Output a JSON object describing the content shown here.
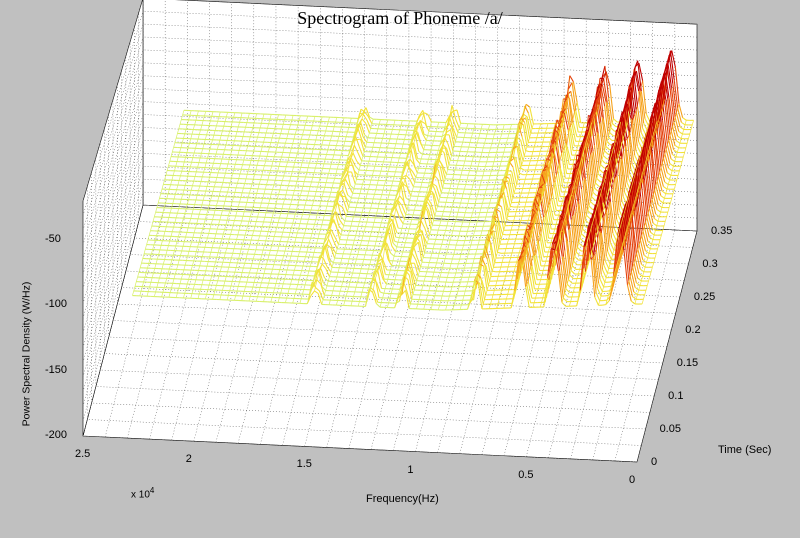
{
  "chart_data": {
    "type": "surface",
    "title": "Spectrogram of Phoneme /a/",
    "xlabel": "Frequency(Hz)",
    "xlabel_multiplier": "x 10",
    "xlabel_multiplier_exp": "4",
    "ylabel": "Time (Sec)",
    "zlabel": "Power Spectral Density (W/Hz)",
    "x_ticks": [
      "0",
      "0.5",
      "1",
      "1.5",
      "2",
      "2.5"
    ],
    "y_ticks": [
      "0",
      "0.05",
      "0.1",
      "0.15",
      "0.2",
      "0.25",
      "0.3",
      "0.35"
    ],
    "z_ticks": [
      "-50",
      "-100",
      "-150",
      "-200"
    ],
    "xlim": [
      0,
      25000
    ],
    "ylim": [
      0,
      0.35
    ],
    "zlim": [
      -200,
      -50
    ],
    "colormap": [
      "#7fdc8a",
      "#d8f06a",
      "#f2e23a",
      "#f6a21c",
      "#e4420e",
      "#c00000"
    ],
    "ridges": [
      {
        "freq": 1000,
        "z": -40
      },
      {
        "freq": 2500,
        "z": -50
      },
      {
        "freq": 4000,
        "z": -55
      },
      {
        "freq": 5500,
        "z": -65
      },
      {
        "freq": 7500,
        "z": -85
      },
      {
        "freq": 10800,
        "z": -90
      },
      {
        "freq": 12200,
        "z": -92
      },
      {
        "freq": 14800,
        "z": -92
      }
    ],
    "grid": true
  }
}
